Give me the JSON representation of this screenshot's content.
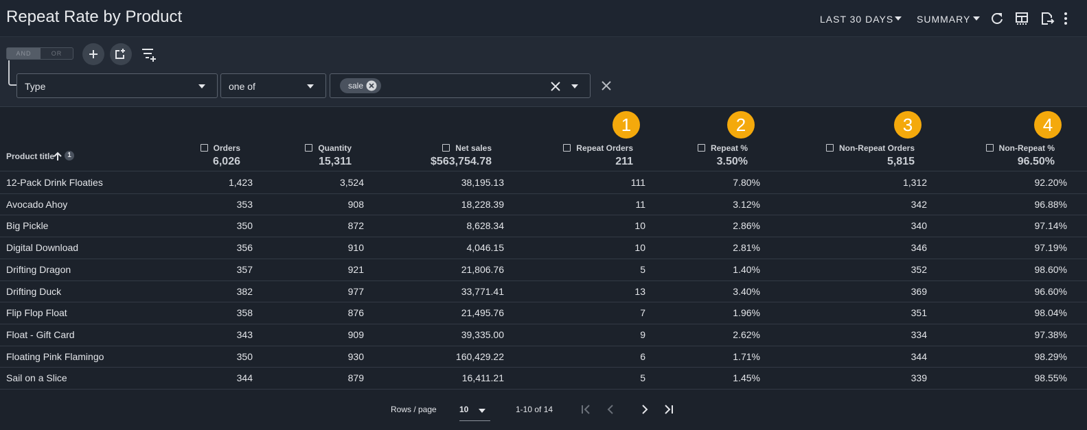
{
  "header": {
    "title": "Repeat Rate by Product",
    "date_range": "LAST 30 DAYS",
    "view": "SUMMARY"
  },
  "filters": {
    "logic": [
      "AND",
      "OR"
    ],
    "field": "Type",
    "operator": "one of",
    "values": [
      "sale"
    ]
  },
  "table": {
    "first_column": "Product title",
    "sort_rank": "1",
    "columns": [
      {
        "name": "Orders",
        "total": "6,026"
      },
      {
        "name": "Quantity",
        "total": "15,311"
      },
      {
        "name": "Net sales",
        "total": "$563,754.78"
      },
      {
        "name": "Repeat Orders",
        "total": "211",
        "callout": "1"
      },
      {
        "name": "Repeat %",
        "total": "3.50%",
        "callout": "2"
      },
      {
        "name": "Non-Repeat Orders",
        "total": "5,815",
        "callout": "3"
      },
      {
        "name": "Non-Repeat %",
        "total": "96.50%",
        "callout": "4"
      }
    ],
    "rows": [
      [
        "12-Pack Drink Floaties",
        "1,423",
        "3,524",
        "38,195.13",
        "111",
        "7.80%",
        "1,312",
        "92.20%"
      ],
      [
        "Avocado Ahoy",
        "353",
        "908",
        "18,228.39",
        "11",
        "3.12%",
        "342",
        "96.88%"
      ],
      [
        "Big Pickle",
        "350",
        "872",
        "8,628.34",
        "10",
        "2.86%",
        "340",
        "97.14%"
      ],
      [
        "Digital Download",
        "356",
        "910",
        "4,046.15",
        "10",
        "2.81%",
        "346",
        "97.19%"
      ],
      [
        "Drifting Dragon",
        "357",
        "921",
        "21,806.76",
        "5",
        "1.40%",
        "352",
        "98.60%"
      ],
      [
        "Drifting Duck",
        "382",
        "977",
        "33,771.41",
        "13",
        "3.40%",
        "369",
        "96.60%"
      ],
      [
        "Flip Flop Float",
        "358",
        "876",
        "21,495.76",
        "7",
        "1.96%",
        "351",
        "98.04%"
      ],
      [
        "Float - Gift Card",
        "343",
        "909",
        "39,335.00",
        "9",
        "2.62%",
        "334",
        "97.38%"
      ],
      [
        "Floating Pink Flamingo",
        "350",
        "930",
        "160,429.22",
        "6",
        "1.71%",
        "344",
        "98.29%"
      ],
      [
        "Sail on a Slice",
        "344",
        "879",
        "16,411.21",
        "5",
        "1.45%",
        "339",
        "98.55%"
      ]
    ]
  },
  "pagination": {
    "rows_per_page_label": "Rows / page",
    "rows_per_page": "10",
    "range": "1-10 of 14"
  }
}
